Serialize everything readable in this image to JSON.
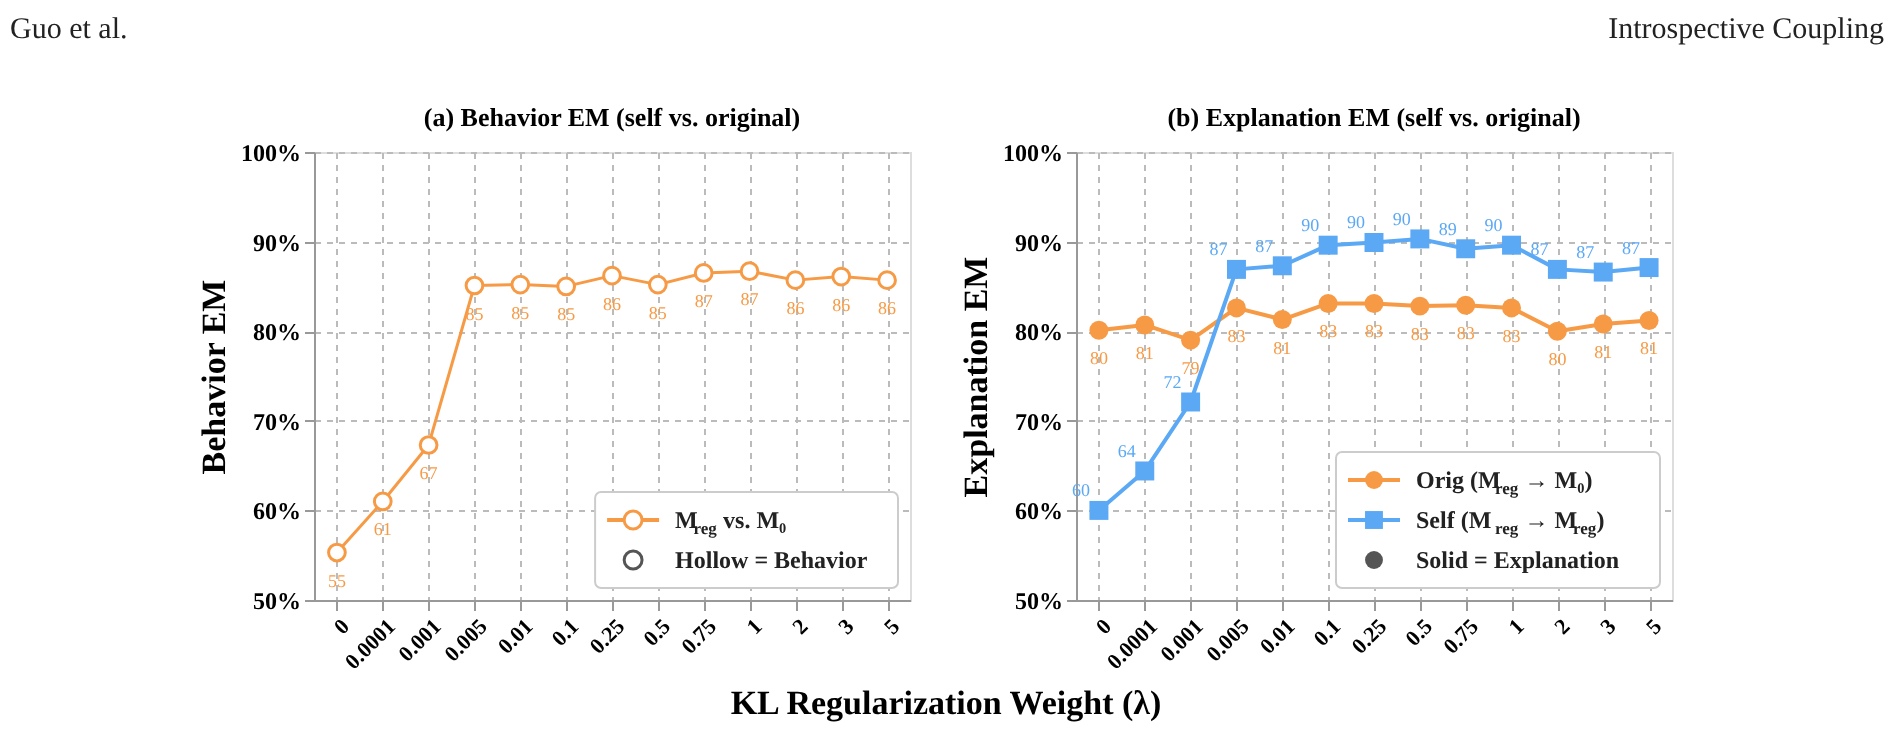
{
  "chart_data": [
    {
      "type": "line",
      "title": "(a) Behavior EM (self vs. original)",
      "ylabel": "Behavior EM",
      "xlabel": "KL Regularization Weight (λ)",
      "annotations": [
        "Guo et al.",
        "Introspective Coupling"
      ],
      "categories": [
        "0",
        "0.0001",
        "0.001",
        "0.005",
        "0.01",
        "0.1",
        "0.25",
        "0.5",
        "0.75",
        "1",
        "2",
        "3",
        "5"
      ],
      "series": [
        {
          "name": "M$_{reg}$ vs. M₀",
          "color": "#f79a45",
          "marker": "circle",
          "values": [
            55.3,
            61.0,
            67.3,
            85.1,
            85.2,
            85.0,
            86.2,
            85.2,
            86.5,
            86.7,
            85.7,
            86.1,
            85.7
          ],
          "value_labels": [
            "55",
            "61",
            "67",
            "85",
            "85",
            "85",
            "86",
            "85",
            "87",
            "87",
            "86",
            "86",
            "86"
          ]
        },
        {
          "name": "Hollow = Behavior",
          "color": "#555555",
          "marker": "circle",
          "values": [
            null,
            null,
            null,
            null,
            null,
            null,
            null,
            null,
            null,
            null,
            null,
            null,
            null
          ]
        }
      ],
      "ylim": [
        50,
        100
      ],
      "yticks": [
        {
          "value": 50,
          "label": "50%"
        },
        {
          "value": 60,
          "label": "60%"
        },
        {
          "value": 70,
          "label": "70%"
        },
        {
          "value": 80,
          "label": "80%"
        },
        {
          "value": 90,
          "label": "90%"
        },
        {
          "value": 100,
          "label": "100%"
        }
      ],
      "grid": true,
      "legend": "bottom right",
      "line_style": "solid"
    },
    {
      "type": "line",
      "title": "(b) Explanation EM (self vs. original)",
      "ylabel": "Explanation EM",
      "categories": [
        "0",
        "0.0001",
        "0.001",
        "0.005",
        "0.01",
        "0.1",
        "0.25",
        "0.5",
        "0.75",
        "1",
        "2",
        "3",
        "5"
      ],
      "series": [
        {
          "name": "Orig (M$_{reg}$ → M₀)",
          "color": "#f79a45",
          "marker": "circle",
          "values": [
            80.1,
            80.7,
            79.0,
            82.6,
            81.3,
            83.1,
            83.1,
            82.8,
            82.9,
            82.6,
            80.0,
            80.8,
            81.2
          ],
          "value_labels": [
            "80",
            "81",
            "79",
            "83",
            "81",
            "83",
            "83",
            "83",
            "83",
            "83",
            "80",
            "81",
            "81"
          ]
        },
        {
          "name": "Self (M$_{reg}$ → M$_{reg}$)",
          "color": "#5ba8f5",
          "marker": "square",
          "values": [
            60.0,
            64.4,
            72.1,
            86.9,
            87.3,
            89.6,
            89.9,
            90.3,
            89.2,
            89.6,
            86.9,
            86.6,
            87.1
          ],
          "value_labels": [
            "60",
            "64",
            "72",
            "87",
            "87",
            "90",
            "90",
            "90",
            "89",
            "90",
            "87",
            "87",
            "87"
          ]
        },
        {
          "name": "Solid = Explanation",
          "color": "#555555",
          "marker": "circle",
          "values": [
            null,
            null,
            null,
            null,
            null,
            null,
            null,
            null,
            null,
            null,
            null,
            null,
            null
          ]
        }
      ],
      "ylim": [
        50,
        100
      ],
      "yticks": [
        {
          "value": 50,
          "label": "50%"
        },
        {
          "value": 60,
          "label": "60%"
        },
        {
          "value": 70,
          "label": "70%"
        },
        {
          "value": 80,
          "label": "80%"
        },
        {
          "value": 90,
          "label": "90%"
        },
        {
          "value": 100,
          "label": "100%"
        }
      ],
      "grid": true,
      "legend": "bottom right",
      "line_style": "solid"
    }
  ]
}
